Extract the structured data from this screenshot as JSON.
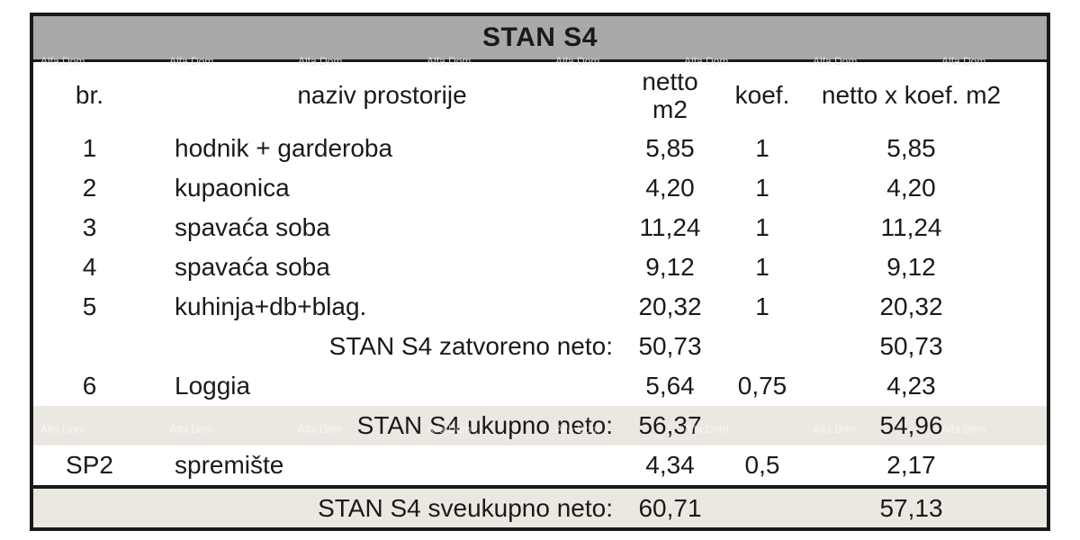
{
  "title": "STAN S4",
  "watermark": {
    "text": "Alfa Dom"
  },
  "colors": {
    "title_bar_bg": "#a9a9a9",
    "summary_row_bg": "#eae8e1",
    "border": "#1a1a1a",
    "text": "#1a1a1a"
  },
  "table": {
    "columns": [
      {
        "key": "br",
        "label": "br."
      },
      {
        "key": "naziv",
        "label": "naziv prostorije"
      },
      {
        "key": "netto",
        "label": "netto\nm2"
      },
      {
        "key": "koef",
        "label": "koef."
      },
      {
        "key": "netto_koef",
        "label": "netto x koef. m2"
      }
    ],
    "rows": [
      {
        "type": "room",
        "br": "1",
        "naziv": "hodnik + garderoba",
        "netto": "5,85",
        "koef": "1",
        "netto_koef": "5,85",
        "bg": "white"
      },
      {
        "type": "room",
        "br": "2",
        "naziv": "kupaonica",
        "netto": "4,20",
        "koef": "1",
        "netto_koef": "4,20",
        "bg": "white"
      },
      {
        "type": "room",
        "br": "3",
        "naziv": "spavaća soba",
        "netto": "11,24",
        "koef": "1",
        "netto_koef": "11,24",
        "bg": "white"
      },
      {
        "type": "room",
        "br": "4",
        "naziv": "spavaća soba",
        "netto": "9,12",
        "koef": "1",
        "netto_koef": "9,12",
        "bg": "white"
      },
      {
        "type": "room",
        "br": "5",
        "naziv": "kuhinja+db+blag.",
        "netto": "20,32",
        "koef": "1",
        "netto_koef": "20,32",
        "bg": "white"
      },
      {
        "type": "summary",
        "br": "",
        "naziv": "STAN S4 zatvoreno neto:",
        "netto": "50,73",
        "koef": "",
        "netto_koef": "50,73",
        "bg": "white"
      },
      {
        "type": "room",
        "br": "6",
        "naziv": "Loggia",
        "netto": "5,64",
        "koef": "0,75",
        "netto_koef": "4,23",
        "bg": "white"
      },
      {
        "type": "summary",
        "br": "",
        "naziv": "STAN S4 ukupno neto:",
        "netto": "56,37",
        "koef": "",
        "netto_koef": "54,96",
        "bg": "beige"
      },
      {
        "type": "room",
        "br": "SP2",
        "naziv": "spremište",
        "netto": "4,34",
        "koef": "0,5",
        "netto_koef": "2,17",
        "bg": "white"
      },
      {
        "type": "summary",
        "br": "",
        "naziv": "STAN S4 sveukupno neto:",
        "netto": "60,71",
        "koef": "",
        "netto_koef": "57,13",
        "bg": "beige",
        "thick_top": true
      }
    ]
  }
}
